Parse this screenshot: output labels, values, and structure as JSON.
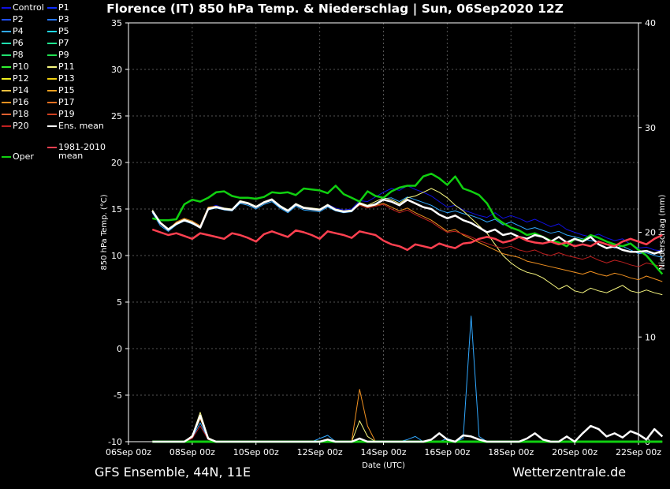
{
  "title": "Florence  (IT)  850 hPa Temp. & Niederschlag | Sun, 06Sep2020 12Z",
  "footer_left": "GFS Ensemble, 44N, 11E",
  "footer_right": "Wetterzentrale.de",
  "legend": [
    {
      "label": "Control",
      "color": "#1010e0"
    },
    {
      "label": "P1",
      "color": "#1030ff"
    },
    {
      "label": "P2",
      "color": "#2050ff"
    },
    {
      "label": "P3",
      "color": "#2878ff"
    },
    {
      "label": "P4",
      "color": "#30a8ff"
    },
    {
      "label": "P5",
      "color": "#20d8e8"
    },
    {
      "label": "P6",
      "color": "#20e0b0"
    },
    {
      "label": "P7",
      "color": "#20e890"
    },
    {
      "label": "P8",
      "color": "#20e070"
    },
    {
      "label": "P9",
      "color": "#20e050"
    },
    {
      "label": "P10",
      "color": "#30f030"
    },
    {
      "label": "P11",
      "color": "#f8f880"
    },
    {
      "label": "P12",
      "color": "#f0f020"
    },
    {
      "label": "P13",
      "color": "#f0d010"
    },
    {
      "label": "P14",
      "color": "#f0c040"
    },
    {
      "label": "P15",
      "color": "#f0a020"
    },
    {
      "label": "P16",
      "color": "#f09020"
    },
    {
      "label": "P17",
      "color": "#f07020"
    },
    {
      "label": "P18",
      "color": "#e06030"
    },
    {
      "label": "P19",
      "color": "#d04020"
    },
    {
      "label": "P20",
      "color": "#c02020"
    },
    {
      "label": "Ens. mean",
      "color": "#ffffff"
    },
    {
      "label": "1981-2010 mean",
      "color": "#ff4050"
    },
    {
      "label": "Oper",
      "color": "#10d010"
    }
  ],
  "chart_data": {
    "type": "line",
    "title": "Florence  (IT)  850 hPa Temp. & Niederschlag | Sun, 06Sep2020 12Z",
    "xlabel": "Date (UTC)",
    "ylabel": "850 hPa Temp. (°C)",
    "y2label": "Niederschlag (mm)",
    "ylim": [
      -10,
      35
    ],
    "y2lim": [
      0,
      40
    ],
    "yticks": [
      -10,
      -5,
      0,
      5,
      10,
      15,
      20,
      25,
      30,
      35
    ],
    "y2ticks": [
      0,
      10,
      20,
      30,
      40
    ],
    "xlim_hours": [
      0,
      384
    ],
    "xticks": [
      {
        "h": 0,
        "label": "06Sep 00z"
      },
      {
        "h": 48,
        "label": "08Sep 00z"
      },
      {
        "h": 96,
        "label": "10Sep 00z"
      },
      {
        "h": 144,
        "label": "12Sep 00z"
      },
      {
        "h": 192,
        "label": "14Sep 00z"
      },
      {
        "h": 240,
        "label": "16Sep 00z"
      },
      {
        "h": 288,
        "label": "18Sep 00z"
      },
      {
        "h": 336,
        "label": "20Sep 00z"
      },
      {
        "h": 384,
        "label": "22Sep 00z"
      }
    ],
    "grid": true,
    "legend_position": "left-outside",
    "start_hour": 18,
    "step_hours": 6,
    "series": [
      {
        "name": "Oper",
        "kind": "temp",
        "color": "#10d010",
        "width": 2.5,
        "values": [
          14.0,
          13.8,
          13.8,
          13.9,
          15.5,
          16.0,
          15.8,
          16.2,
          16.8,
          16.9,
          16.4,
          16.2,
          16.2,
          16.1,
          16.3,
          16.8,
          16.7,
          16.8,
          16.5,
          17.2,
          17.1,
          17.0,
          16.7,
          17.5,
          16.6,
          16.2,
          15.8,
          16.9,
          16.4,
          16.2,
          16.9,
          17.3,
          17.5,
          17.5,
          18.5,
          18.8,
          18.3,
          17.6,
          18.5,
          17.2,
          16.9,
          16.5,
          15.6,
          14.1,
          13.5,
          13.0,
          12.7,
          12.2,
          12.4,
          12.0,
          11.6,
          11.4,
          11.0,
          11.8,
          11.6,
          12.2,
          11.9,
          11.5,
          11.2,
          11.0,
          11.3,
          10.6,
          10.0,
          9.0,
          8.0
        ]
      },
      {
        "name": "Ens. mean",
        "kind": "temp",
        "color": "#ffffff",
        "width": 2.5,
        "values": [
          14.8,
          13.5,
          12.8,
          13.4,
          13.8,
          13.5,
          13.0,
          15.0,
          15.2,
          15.0,
          14.9,
          15.8,
          15.6,
          15.2,
          15.7,
          16.0,
          15.3,
          14.8,
          15.5,
          15.1,
          15.0,
          14.9,
          15.4,
          14.9,
          14.7,
          14.8,
          15.6,
          15.3,
          15.5,
          16.0,
          15.8,
          15.4,
          16.0,
          15.6,
          15.2,
          15.0,
          14.4,
          14.0,
          14.3,
          13.8,
          13.5,
          13.0,
          12.5,
          12.8,
          12.2,
          12.4,
          12.0,
          11.8,
          12.2,
          12.0,
          11.5,
          12.0,
          11.4,
          11.8,
          11.5,
          12.0,
          11.2,
          10.8,
          11.0,
          10.6,
          10.4,
          10.4,
          10.5,
          10.2,
          10.5
        ]
      },
      {
        "name": "1981-2010 mean",
        "kind": "temp",
        "color": "#ff4050",
        "width": 2.5,
        "values": [
          12.8,
          12.5,
          12.2,
          12.4,
          12.1,
          11.8,
          12.4,
          12.2,
          12.0,
          11.8,
          12.4,
          12.2,
          11.9,
          11.5,
          12.3,
          12.6,
          12.3,
          12.0,
          12.7,
          12.5,
          12.2,
          11.8,
          12.6,
          12.4,
          12.2,
          11.9,
          12.6,
          12.4,
          12.2,
          11.6,
          11.2,
          11.0,
          10.6,
          11.2,
          11.0,
          10.8,
          11.3,
          11.0,
          10.8,
          11.3,
          11.4,
          11.8,
          12.0,
          11.8,
          11.4,
          11.6,
          12.0,
          11.6,
          11.4,
          11.3,
          11.5,
          11.2,
          11.4,
          11.0,
          11.2,
          11.0,
          11.5,
          11.2,
          11.0,
          11.5,
          11.8,
          11.5,
          11.2,
          11.8,
          12.2
        ]
      },
      {
        "name": "Control",
        "kind": "temp",
        "color": "#1010e0",
        "width": 1,
        "values": [
          14.7,
          13.4,
          12.7,
          13.5,
          13.9,
          13.6,
          13.2,
          15.1,
          15.4,
          15.1,
          15.0,
          15.9,
          15.7,
          15.3,
          15.8,
          16.1,
          15.4,
          14.9,
          15.6,
          15.2,
          15.1,
          15.0,
          15.5,
          15.1,
          14.9,
          15.0,
          15.9,
          15.8,
          16.3,
          16.8,
          17.2,
          17.0,
          17.5,
          17.1,
          16.8,
          16.4,
          15.8,
          15.2,
          15.4,
          14.9,
          14.6,
          14.3,
          14.1,
          14.6,
          14.0,
          14.3,
          14.0,
          13.6,
          13.9,
          13.5,
          13.1,
          13.4,
          12.8,
          12.5,
          12.2,
          12.0,
          12.3,
          11.9,
          11.6,
          11.8,
          11.2,
          10.8,
          10.9,
          10.6,
          10.5
        ]
      },
      {
        "name": "P4",
        "kind": "temp",
        "color": "#30a8ff",
        "width": 1,
        "values": [
          14.6,
          13.2,
          12.6,
          13.3,
          13.7,
          13.4,
          13.0,
          14.9,
          15.1,
          14.9,
          14.8,
          15.6,
          15.4,
          15.0,
          15.5,
          15.8,
          15.1,
          14.6,
          15.3,
          14.9,
          14.8,
          14.7,
          15.2,
          14.8,
          14.6,
          14.7,
          15.6,
          15.2,
          15.6,
          16.1,
          16.2,
          15.8,
          16.3,
          16.0,
          15.7,
          15.4,
          14.9,
          14.6,
          14.8,
          14.5,
          14.3,
          14.0,
          13.6,
          13.9,
          13.3,
          13.6,
          13.2,
          12.8,
          13.0,
          12.7,
          12.4,
          12.6,
          12.2,
          12.0,
          11.8,
          11.6,
          11.5,
          11.2,
          10.8,
          11.0,
          10.6,
          10.2,
          10.3,
          10.0,
          9.8
        ]
      },
      {
        "name": "P11",
        "kind": "temp",
        "color": "#f8f880",
        "width": 1,
        "values": [
          14.9,
          13.6,
          12.9,
          13.5,
          13.9,
          13.6,
          13.1,
          15.1,
          15.3,
          15.1,
          15.0,
          15.9,
          15.7,
          15.3,
          15.8,
          16.1,
          15.4,
          14.9,
          15.6,
          15.2,
          15.1,
          15.0,
          15.5,
          15.0,
          14.8,
          14.9,
          15.7,
          15.4,
          15.8,
          16.2,
          16.0,
          15.6,
          16.2,
          16.4,
          16.8,
          17.2,
          16.8,
          16.2,
          15.4,
          14.8,
          14.0,
          13.2,
          12.4,
          11.2,
          10.0,
          9.2,
          8.6,
          8.2,
          8.0,
          7.6,
          7.0,
          6.4,
          6.8,
          6.2,
          6.0,
          6.5,
          6.2,
          6.0,
          6.4,
          6.8,
          6.2,
          6.0,
          6.3,
          6.0,
          5.8
        ]
      },
      {
        "name": "P16",
        "kind": "temp",
        "color": "#f09020",
        "width": 1,
        "values": [
          14.8,
          13.5,
          12.8,
          13.6,
          14.0,
          13.7,
          13.2,
          15.2,
          15.3,
          15.0,
          14.9,
          15.8,
          15.6,
          15.2,
          15.7,
          16.0,
          15.3,
          14.8,
          15.5,
          15.1,
          15.0,
          14.9,
          15.4,
          14.9,
          14.7,
          14.8,
          15.5,
          15.2,
          15.4,
          15.6,
          15.2,
          14.8,
          15.1,
          14.6,
          14.2,
          13.8,
          13.2,
          12.6,
          12.8,
          12.2,
          11.8,
          11.4,
          11.0,
          10.6,
          10.2,
          10.0,
          9.8,
          9.4,
          9.2,
          9.0,
          8.8,
          8.6,
          8.4,
          8.2,
          8.0,
          8.3,
          8.0,
          7.8,
          8.1,
          7.9,
          7.6,
          7.4,
          7.8,
          7.5,
          7.2
        ]
      },
      {
        "name": "P20",
        "kind": "temp",
        "color": "#c02020",
        "width": 1,
        "values": [
          14.7,
          13.4,
          12.7,
          13.4,
          13.8,
          13.5,
          13.0,
          15.0,
          15.2,
          15.0,
          14.9,
          15.8,
          15.6,
          15.2,
          15.7,
          16.0,
          15.3,
          14.8,
          15.5,
          15.1,
          15.0,
          14.9,
          15.4,
          14.9,
          14.7,
          14.8,
          15.4,
          15.1,
          15.3,
          15.5,
          15.0,
          14.6,
          14.9,
          14.4,
          14.0,
          13.6,
          13.0,
          12.5,
          12.6,
          12.3,
          12.0,
          11.6,
          11.3,
          11.0,
          10.8,
          11.0,
          10.6,
          10.4,
          10.6,
          10.2,
          10.0,
          10.3,
          10.0,
          9.8,
          9.6,
          9.9,
          9.5,
          9.2,
          9.5,
          9.3,
          9.0,
          8.8,
          9.2,
          9.0,
          8.8
        ]
      },
      {
        "name": "Oper",
        "kind": "precip",
        "color": "#10d010",
        "width": 3,
        "values": [
          0,
          0,
          0,
          0,
          0,
          0,
          0,
          0,
          0,
          0,
          0,
          0,
          0,
          0,
          0,
          0,
          0,
          0,
          0,
          0,
          0,
          0,
          0,
          0,
          0,
          0,
          0,
          0,
          0,
          0,
          0,
          0,
          0,
          0,
          0,
          0,
          0,
          0,
          0,
          0,
          0,
          0,
          0,
          0,
          0,
          0,
          0,
          0,
          0,
          0,
          0,
          0,
          0,
          0,
          0,
          0,
          0,
          0,
          0,
          0,
          0,
          0,
          0,
          0,
          0
        ]
      },
      {
        "name": "Ens. mean",
        "kind": "precip",
        "color": "#ffffff",
        "width": 2.5,
        "values": [
          0,
          0,
          0,
          0,
          0,
          0.5,
          2.5,
          0.3,
          0,
          0,
          0,
          0,
          0,
          0,
          0,
          0,
          0,
          0,
          0,
          0,
          0,
          0,
          0.2,
          0,
          0,
          0,
          0.3,
          0,
          0,
          0,
          0,
          0,
          0,
          0,
          0,
          0.2,
          0.8,
          0.2,
          0,
          0.6,
          0.5,
          0.2,
          0,
          0,
          0,
          0,
          0,
          0.3,
          0.8,
          0.2,
          0,
          0,
          0.5,
          0,
          0.8,
          1.5,
          1.2,
          0.5,
          0.8,
          0.4,
          1.0,
          0.7,
          0.2,
          1.2,
          0.5
        ]
      },
      {
        "name": "P4",
        "kind": "precip",
        "color": "#30a8ff",
        "width": 1,
        "values": [
          0,
          0,
          0,
          0,
          0,
          0.4,
          1.8,
          0.2,
          0,
          0,
          0,
          0,
          0,
          0,
          0,
          0,
          0,
          0,
          0,
          0,
          0,
          0.3,
          0.6,
          0,
          0,
          0,
          0,
          0,
          0,
          0,
          0,
          0,
          0.2,
          0.5,
          0,
          0,
          0,
          0.3,
          0,
          0.3,
          12.0,
          0.5,
          0,
          0,
          0,
          0,
          0,
          0,
          0,
          0,
          0,
          0,
          0,
          0,
          0,
          0,
          0,
          0,
          0,
          0,
          0,
          0,
          0,
          0,
          0
        ]
      },
      {
        "name": "P11",
        "kind": "precip",
        "color": "#f8f880",
        "width": 1,
        "values": [
          0,
          0,
          0,
          0,
          0,
          0.6,
          2.8,
          0.4,
          0,
          0,
          0,
          0,
          0,
          0,
          0,
          0,
          0,
          0,
          0,
          0,
          0,
          0,
          0,
          0,
          0,
          0,
          2.0,
          0.5,
          0,
          0,
          0,
          0,
          0,
          0,
          0,
          0,
          0,
          0,
          0,
          0,
          0,
          0,
          0,
          0,
          0,
          0,
          0,
          0,
          0,
          0,
          0,
          0,
          0,
          0,
          0,
          0,
          0,
          0,
          0,
          0,
          0,
          0,
          0,
          0,
          0
        ]
      },
      {
        "name": "P16",
        "kind": "precip",
        "color": "#f09020",
        "width": 1,
        "values": [
          0,
          0,
          0,
          0,
          0,
          0.5,
          2.2,
          0.3,
          0,
          0,
          0,
          0,
          0,
          0,
          0,
          0,
          0,
          0,
          0,
          0,
          0,
          0,
          0,
          0,
          0,
          0,
          5.0,
          1.5,
          0,
          0,
          0,
          0,
          0,
          0,
          0,
          0,
          0,
          0,
          0,
          0,
          0,
          0,
          0,
          0,
          0,
          0,
          0,
          0,
          0,
          0,
          0,
          0,
          0,
          0,
          0,
          0,
          0,
          0,
          0,
          0,
          0,
          0,
          0,
          0,
          0
        ]
      },
      {
        "name": "P20",
        "kind": "precip",
        "color": "#c02020",
        "width": 1,
        "values": [
          0,
          0,
          0,
          0,
          0,
          0.3,
          1.5,
          0.2,
          0,
          0,
          0,
          0,
          0,
          0,
          0,
          0,
          0,
          0,
          0,
          0,
          0,
          0,
          0,
          0,
          0,
          0,
          0,
          0,
          0,
          0,
          0,
          0,
          0,
          0,
          0,
          0,
          0,
          0,
          0,
          0,
          0,
          0,
          0,
          0,
          0,
          0,
          0,
          0,
          0,
          0,
          0,
          0,
          0,
          0,
          0,
          0,
          0,
          0,
          0,
          0,
          0,
          0,
          0,
          0,
          0
        ]
      }
    ]
  }
}
